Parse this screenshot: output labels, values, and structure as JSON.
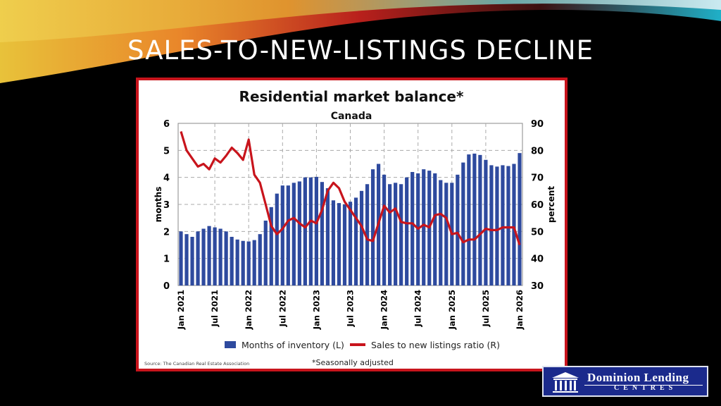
{
  "slide": {
    "title": "SALES-TO-NEW-LISTINGS DECLINE"
  },
  "logo": {
    "line1": "Dominion Lending",
    "line2": "CENTRES"
  },
  "colors": {
    "bar": "#2e4a9e",
    "line": "#c8141c",
    "frame": "#c8141c"
  },
  "chart_data": {
    "type": "bar+line",
    "title": "Residential market balance*",
    "subtitle": "Canada",
    "ylabel_left": "months",
    "ylabel_right": "percent",
    "ylim_left": [
      0,
      6
    ],
    "ylim_right": [
      30,
      90
    ],
    "yticks_left": [
      "0",
      "1",
      "2",
      "3",
      "4",
      "5",
      "6"
    ],
    "yticks_right": [
      "30",
      "40",
      "50",
      "60",
      "70",
      "80",
      "90"
    ],
    "xtick_labels": [
      "Jan 2021",
      "Jul 2021",
      "Jan 2022",
      "Jul 2022",
      "Jan 2023",
      "Jul 2023",
      "Jan 2024",
      "Jul 2024",
      "Jan 2025",
      "Jul 2025",
      "Jan 2026"
    ],
    "x_start": "Jan 2021",
    "x_end": "Jan 2026",
    "frequency": "monthly",
    "grid": true,
    "legend_position": "bottom",
    "series": [
      {
        "name": "Months of inventory (L)",
        "type": "bar",
        "axis": "left",
        "values": [
          2.0,
          1.9,
          1.8,
          2.0,
          2.1,
          2.2,
          2.15,
          2.1,
          2.0,
          1.8,
          1.7,
          1.65,
          1.63,
          1.68,
          1.9,
          2.4,
          2.9,
          3.4,
          3.7,
          3.7,
          3.8,
          3.85,
          4.0,
          4.0,
          4.02,
          3.83,
          3.6,
          3.15,
          3.05,
          3.0,
          3.1,
          3.25,
          3.5,
          3.75,
          4.3,
          4.5,
          4.1,
          3.75,
          3.8,
          3.75,
          4.0,
          4.2,
          4.15,
          4.3,
          4.25,
          4.15,
          3.9,
          3.8,
          3.8,
          4.1,
          4.55,
          4.85,
          4.88,
          4.83,
          4.65,
          4.45,
          4.4,
          4.45,
          4.42,
          4.5,
          4.9
        ]
      },
      {
        "name": "Sales to new listings ratio (R)",
        "type": "line",
        "axis": "right",
        "values": [
          87,
          80,
          77,
          74,
          75,
          73,
          77,
          75.5,
          78,
          81,
          79,
          76.5,
          84,
          71,
          68,
          60,
          52,
          49,
          51,
          54,
          55,
          53,
          51.5,
          54,
          53,
          58,
          65,
          68,
          66,
          61,
          58,
          55,
          52,
          47,
          46.5,
          53,
          59.5,
          57,
          58.5,
          53.5,
          53,
          53,
          51,
          52.5,
          51.5,
          56,
          56.5,
          55,
          49,
          49.5,
          46,
          47,
          47,
          49,
          51,
          50.5,
          50.5,
          51.5,
          51.5,
          51.5,
          45
        ]
      }
    ],
    "source": "Source: The Canadian Real Estate Association",
    "footnote": "*Seasonally adjusted"
  }
}
